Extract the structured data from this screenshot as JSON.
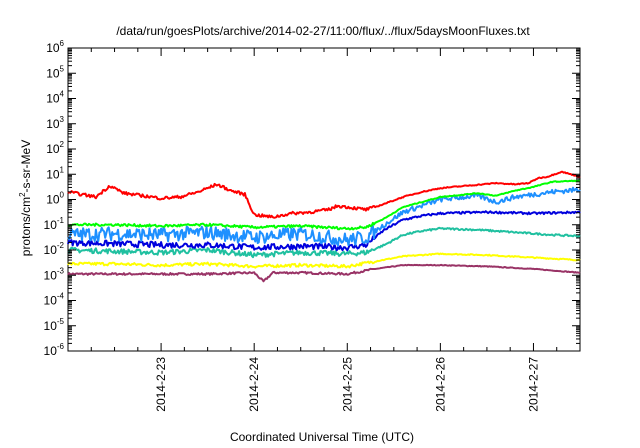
{
  "chart_data": {
    "type": "line",
    "title": "/data/run/goesPlots/archive/2014-02-27/11:00/flux/../flux/5daysMoonFluxes.txt",
    "xlabel": "Coordinated Universal Time (UTC)",
    "ylabel": {
      "pre": "protons/cm",
      "sup": "2",
      "post": "-s-sr-MeV"
    },
    "yscale": "log",
    "ylim_exponent": [
      -6,
      6
    ],
    "xlim_days": [
      22.0,
      27.5
    ],
    "x_ticks": [
      {
        "day": 23,
        "label": "2014-2-23"
      },
      {
        "day": 24,
        "label": "2014-2-24"
      },
      {
        "day": 25,
        "label": "2014-2-25"
      },
      {
        "day": 26,
        "label": "2014-2-26"
      },
      {
        "day": 27,
        "label": "2014-2-27"
      }
    ],
    "y_ticks": [
      {
        "exp": -6,
        "label": "10",
        "sup": "-6"
      },
      {
        "exp": -5,
        "label": "10",
        "sup": "-5"
      },
      {
        "exp": -4,
        "label": "10",
        "sup": "-4"
      },
      {
        "exp": -3,
        "label": "10",
        "sup": "-3"
      },
      {
        "exp": -2,
        "label": "10",
        "sup": "-2"
      },
      {
        "exp": -1,
        "label": "10",
        "sup": "-1"
      },
      {
        "exp": 0,
        "label": "10",
        "sup": "0"
      },
      {
        "exp": 1,
        "label": "10",
        "sup": "1"
      },
      {
        "exp": 2,
        "label": "10",
        "sup": "2"
      },
      {
        "exp": 3,
        "label": "10",
        "sup": "3"
      },
      {
        "exp": 4,
        "label": "10",
        "sup": "4"
      },
      {
        "exp": 5,
        "label": "10",
        "sup": "5"
      },
      {
        "exp": 6,
        "label": "10",
        "sup": "6"
      }
    ],
    "legend": "none",
    "grid": false,
    "series": [
      {
        "color": "#ff0000",
        "noise": 0.06,
        "points": [
          [
            22.0,
            0.3
          ],
          [
            22.3,
            0.1
          ],
          [
            22.45,
            0.55
          ],
          [
            22.6,
            0.25
          ],
          [
            22.8,
            0.15
          ],
          [
            23.0,
            0.05
          ],
          [
            23.2,
            0.1
          ],
          [
            23.4,
            0.3
          ],
          [
            23.6,
            0.6
          ],
          [
            23.75,
            0.35
          ],
          [
            23.9,
            0.2
          ],
          [
            24.0,
            -0.6
          ],
          [
            24.2,
            -0.7
          ],
          [
            24.4,
            -0.55
          ],
          [
            24.6,
            -0.5
          ],
          [
            24.8,
            -0.4
          ],
          [
            24.9,
            -0.25
          ],
          [
            25.0,
            -0.3
          ],
          [
            25.2,
            -0.4
          ],
          [
            25.3,
            -0.3
          ],
          [
            25.45,
            -0.1
          ],
          [
            25.6,
            0.1
          ],
          [
            25.8,
            0.3
          ],
          [
            26.0,
            0.45
          ],
          [
            26.3,
            0.55
          ],
          [
            26.6,
            0.65
          ],
          [
            26.8,
            0.6
          ],
          [
            26.95,
            0.65
          ],
          [
            27.05,
            0.85
          ],
          [
            27.15,
            0.9
          ],
          [
            27.3,
            1.1
          ],
          [
            27.5,
            0.9
          ]
        ]
      },
      {
        "color": "#00ff00",
        "noise": 0.05,
        "points": [
          [
            22.0,
            -1.0
          ],
          [
            22.5,
            -1.0
          ],
          [
            23.0,
            -1.05
          ],
          [
            23.5,
            -1.0
          ],
          [
            24.0,
            -1.1
          ],
          [
            24.5,
            -1.05
          ],
          [
            25.0,
            -1.15
          ],
          [
            25.2,
            -1.1
          ],
          [
            25.4,
            -0.75
          ],
          [
            25.6,
            -0.3
          ],
          [
            25.8,
            -0.1
          ],
          [
            26.0,
            0.1
          ],
          [
            26.4,
            0.25
          ],
          [
            26.6,
            0.15
          ],
          [
            26.8,
            0.35
          ],
          [
            27.0,
            0.5
          ],
          [
            27.2,
            0.7
          ],
          [
            27.5,
            0.75
          ]
        ]
      },
      {
        "color": "#1e90ff",
        "noise": 0.28,
        "points": [
          [
            22.0,
            -1.4
          ],
          [
            22.5,
            -1.35
          ],
          [
            23.0,
            -1.4
          ],
          [
            23.5,
            -1.3
          ],
          [
            24.0,
            -1.5
          ],
          [
            24.5,
            -1.35
          ],
          [
            25.0,
            -1.6
          ],
          [
            25.2,
            -1.5
          ],
          [
            25.4,
            -1.0
          ],
          [
            25.6,
            -0.5
          ],
          [
            25.8,
            -0.25
          ],
          [
            26.0,
            0.0
          ],
          [
            26.4,
            0.15
          ],
          [
            26.6,
            -0.1
          ],
          [
            26.8,
            0.1
          ],
          [
            27.0,
            0.2
          ],
          [
            27.2,
            0.3
          ],
          [
            27.5,
            0.4
          ]
        ]
      },
      {
        "color": "#0000dd",
        "noise": 0.12,
        "points": [
          [
            22.0,
            -1.7
          ],
          [
            22.5,
            -1.75
          ],
          [
            23.0,
            -1.8
          ],
          [
            23.5,
            -1.8
          ],
          [
            24.0,
            -1.9
          ],
          [
            24.5,
            -1.85
          ],
          [
            25.0,
            -1.9
          ],
          [
            25.2,
            -1.8
          ],
          [
            25.4,
            -1.2
          ],
          [
            25.6,
            -0.8
          ],
          [
            25.8,
            -0.65
          ],
          [
            26.0,
            -0.55
          ],
          [
            26.5,
            -0.5
          ],
          [
            27.0,
            -0.55
          ],
          [
            27.5,
            -0.5
          ]
        ]
      },
      {
        "color": "#20c0a0",
        "noise": 0.1,
        "points": [
          [
            22.0,
            -2.0
          ],
          [
            22.5,
            -2.05
          ],
          [
            23.0,
            -2.1
          ],
          [
            23.5,
            -2.0
          ],
          [
            24.0,
            -2.2
          ],
          [
            24.5,
            -2.1
          ],
          [
            25.0,
            -2.15
          ],
          [
            25.2,
            -2.1
          ],
          [
            25.4,
            -1.8
          ],
          [
            25.6,
            -1.4
          ],
          [
            25.8,
            -1.25
          ],
          [
            26.0,
            -1.15
          ],
          [
            26.4,
            -1.2
          ],
          [
            26.8,
            -1.3
          ],
          [
            27.2,
            -1.4
          ],
          [
            27.5,
            -1.45
          ]
        ]
      },
      {
        "color": "#ffff00",
        "noise": 0.06,
        "points": [
          [
            22.0,
            -2.55
          ],
          [
            22.5,
            -2.55
          ],
          [
            23.0,
            -2.6
          ],
          [
            23.5,
            -2.55
          ],
          [
            24.0,
            -2.65
          ],
          [
            24.5,
            -2.6
          ],
          [
            25.0,
            -2.65
          ],
          [
            25.3,
            -2.45
          ],
          [
            25.6,
            -2.25
          ],
          [
            26.0,
            -2.15
          ],
          [
            26.5,
            -2.2
          ],
          [
            27.0,
            -2.3
          ],
          [
            27.5,
            -2.4
          ]
        ]
      },
      {
        "color": "#993366",
        "noise": 0.04,
        "points": [
          [
            22.0,
            -2.95
          ],
          [
            22.5,
            -2.95
          ],
          [
            23.0,
            -2.95
          ],
          [
            23.5,
            -2.95
          ],
          [
            24.0,
            -2.9
          ],
          [
            24.1,
            -3.25
          ],
          [
            24.2,
            -2.9
          ],
          [
            24.5,
            -2.9
          ],
          [
            25.0,
            -2.95
          ],
          [
            25.3,
            -2.75
          ],
          [
            25.6,
            -2.6
          ],
          [
            26.0,
            -2.6
          ],
          [
            26.5,
            -2.65
          ],
          [
            27.0,
            -2.75
          ],
          [
            27.5,
            -2.9
          ]
        ]
      }
    ]
  }
}
